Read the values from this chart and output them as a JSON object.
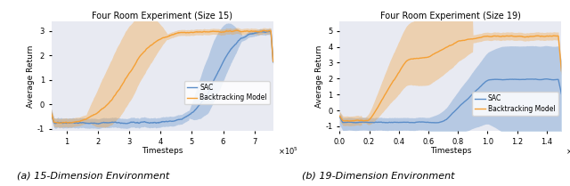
{
  "left_title": "Four Room Experiment (Size 15)",
  "right_title": "Four Room Experiment (Size 19)",
  "left_caption": "(a) 15-Dimension Environment",
  "right_caption": "(b) 19-Dimension Environment",
  "ylabel": "Average Return",
  "xlabel": "Timesteps",
  "bg_color": "#e8eaf2",
  "sac_color": "#5b8dc8",
  "btm_color": "#f5a035",
  "sac_alpha": 0.35,
  "btm_alpha": 0.35,
  "left_xlim": [
    50000,
    760000
  ],
  "left_ylim": [
    -1.1,
    3.4
  ],
  "left_xticks": [
    100000,
    200000,
    300000,
    400000,
    500000,
    600000,
    700000
  ],
  "left_yticks": [
    -1,
    0,
    1,
    2,
    3
  ],
  "left_xtick_labels": [
    "1",
    "2",
    "3",
    "4",
    "5",
    "6",
    "7"
  ],
  "right_xlim": [
    0,
    1500000
  ],
  "right_ylim": [
    -1.3,
    5.6
  ],
  "right_xticks": [
    0,
    200000,
    400000,
    600000,
    800000,
    1000000,
    1200000,
    1400000
  ],
  "right_yticks": [
    -1,
    0,
    1,
    2,
    3,
    4,
    5
  ],
  "right_ytick_labels": [
    "-1",
    "0",
    "1",
    "2",
    "3",
    "4",
    "5"
  ],
  "right_xtick_labels": [
    "0.0",
    "0.2",
    "0.4",
    "0.6",
    "0.8",
    "1.0",
    "1.2",
    "1.4"
  ],
  "legend_sac": "SAC",
  "legend_btm": "Backtracking Model"
}
